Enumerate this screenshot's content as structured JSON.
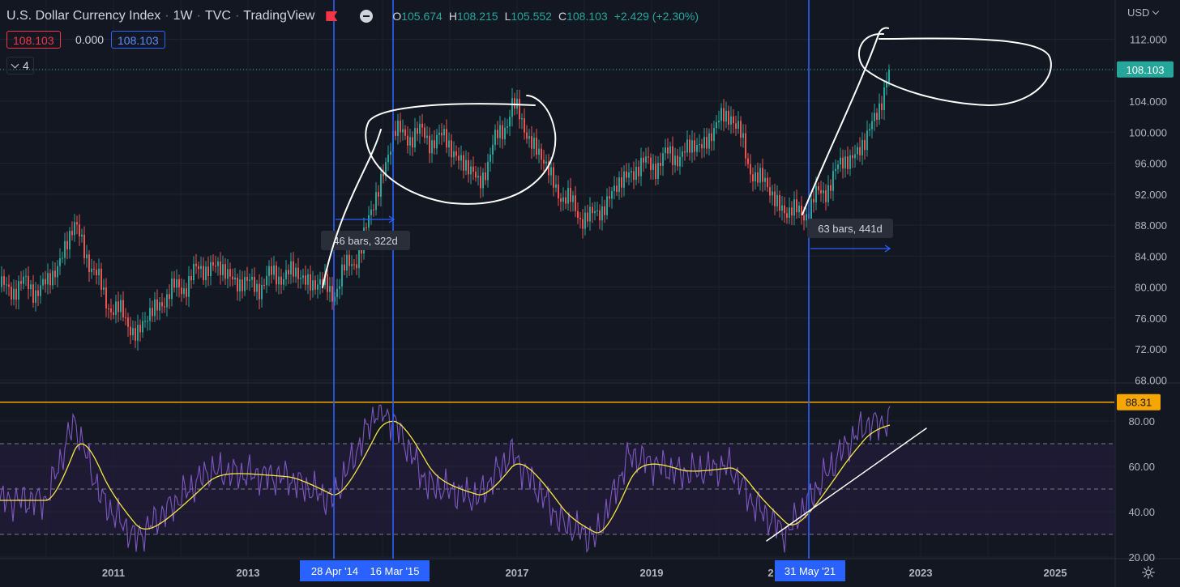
{
  "header": {
    "symbol": "U.S. Dollar Currency Index",
    "interval": "1W",
    "exchange": "TVC",
    "platform": "TradingView",
    "ohlc": {
      "open_label": "O",
      "open": "105.674",
      "high_label": "H",
      "high": "108.215",
      "low_label": "L",
      "low": "105.552",
      "close_label": "C",
      "close": "108.103",
      "change": "+2.429 (+2.30%)"
    }
  },
  "badges": {
    "bid": "108.103",
    "spread": "0.000",
    "ask": "108.103"
  },
  "indicators_collapsed": {
    "count": "4"
  },
  "currency_selector": {
    "label": "USD"
  },
  "price_axis": {
    "ticks": [
      "112.000",
      "108.000",
      "104.000",
      "100.000",
      "96.000",
      "92.000",
      "88.000",
      "84.000",
      "80.000",
      "76.000",
      "72.000",
      "68.000"
    ],
    "current_price_label": "108.103",
    "colors": {
      "current_price": "#26a69a"
    }
  },
  "rsi_axis": {
    "ticks": [
      "80.00",
      "60.00",
      "40.00",
      "20.00"
    ],
    "level_label": "88.31",
    "colors": {
      "level": "#f7a600"
    }
  },
  "time_axis": {
    "ticks": [
      "2011",
      "2013",
      "2017",
      "2019",
      "2023",
      "2025"
    ],
    "highlight_labels": [
      "28 Apr '14",
      "16 Mar '15",
      "31 May '21"
    ],
    "partial_label": "2"
  },
  "measurements": [
    {
      "label": "46 bars, 322d"
    },
    {
      "label": "63 bars, 441d"
    }
  ],
  "colors": {
    "background": "#131722",
    "up": "#26a69a",
    "down": "#ef5350",
    "vertical_lines": "#2962ff",
    "rsi_line": "#7e57c2",
    "rsi_ma": "#f5e642",
    "rsi_band": "#1f1a33"
  },
  "chart_data": {
    "type": "candlestick",
    "price_series": {
      "x": [
        "2010-01",
        "2010-06",
        "2010-11",
        "2011-05",
        "2011-09",
        "2012-06",
        "2013-01",
        "2013-08",
        "2014-04",
        "2014-09",
        "2015-03",
        "2015-12",
        "2016-06",
        "2016-12",
        "2017-09",
        "2018-02",
        "2018-09",
        "2019-05",
        "2019-10",
        "2020-03",
        "2020-06",
        "2021-01",
        "2021-05",
        "2021-11",
        "2022-03",
        "2022-07",
        "2022-09"
      ],
      "y": [
        80,
        88,
        79,
        74,
        78,
        83,
        80,
        82,
        79.5,
        85,
        100,
        99,
        93.5,
        103.5,
        91.5,
        88.5,
        95,
        97,
        98.5,
        103,
        96,
        89.5,
        90,
        96,
        98.5,
        107,
        108.103
      ]
    },
    "rsi_series": {
      "x": [
        "2010-01",
        "2010-06",
        "2010-11",
        "2011-05",
        "2012-06",
        "2013-08",
        "2014-04",
        "2014-12",
        "2015-03",
        "2015-09",
        "2016-06",
        "2016-12",
        "2017-09",
        "2018-03",
        "2018-09",
        "2019-06",
        "2020-03",
        "2020-07",
        "2021-01",
        "2021-05",
        "2021-11",
        "2022-03",
        "2022-08",
        "2022-09"
      ],
      "y": [
        45,
        80,
        45,
        28,
        58,
        55,
        45,
        85,
        80,
        52,
        46,
        66,
        35,
        28,
        65,
        57,
        60,
        44,
        30,
        45,
        67,
        78,
        80,
        68
      ]
    },
    "y_range_price": [
      68,
      112
    ],
    "y_range_rsi": [
      20,
      88.31
    ]
  }
}
